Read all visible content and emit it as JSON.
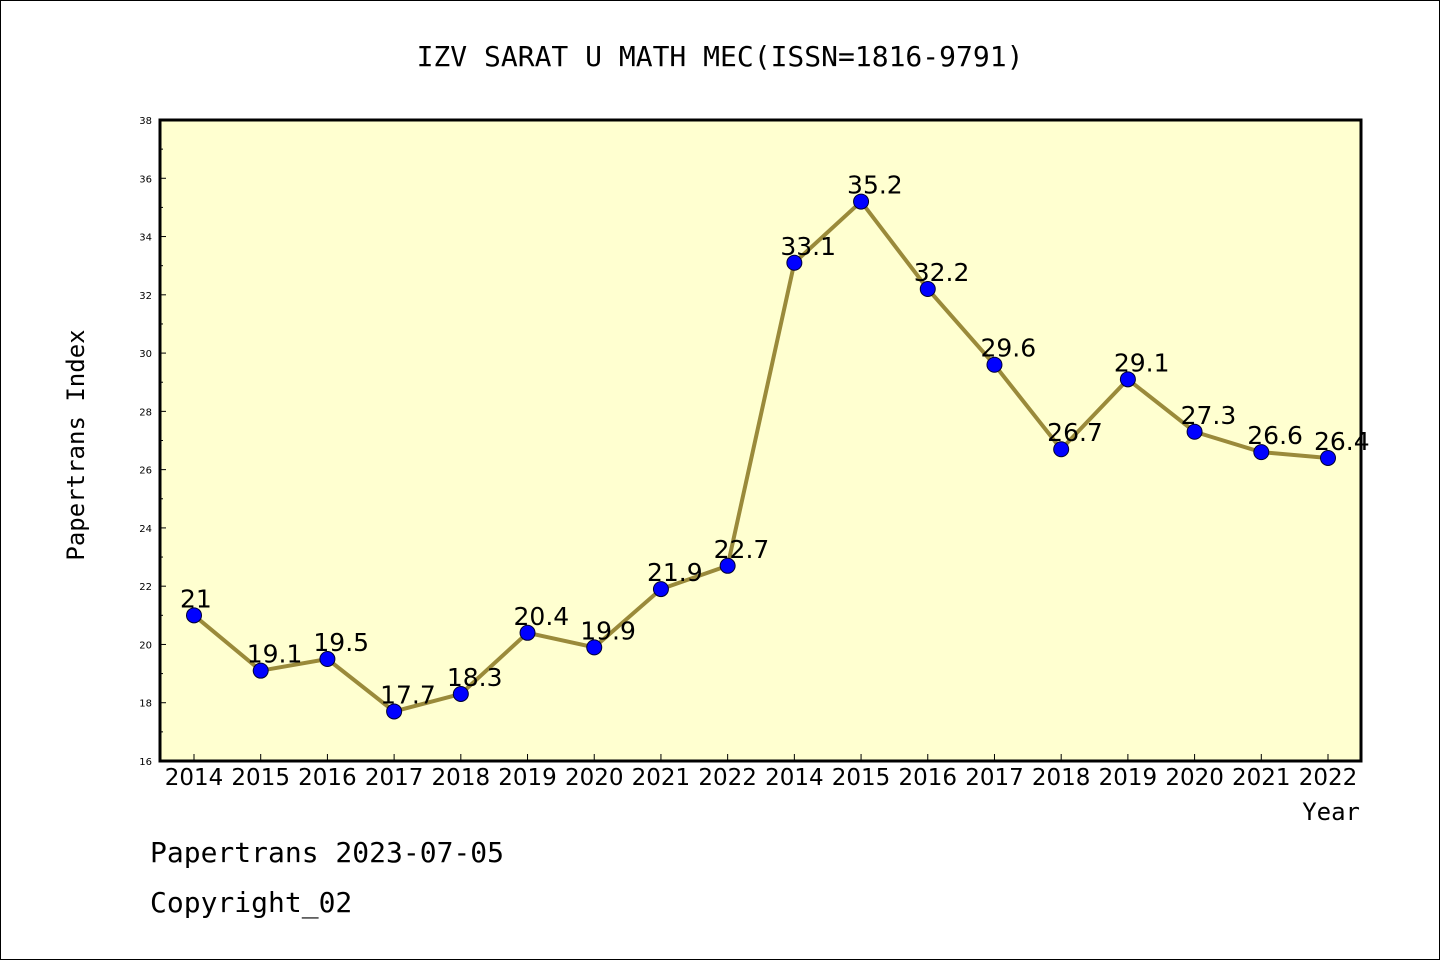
{
  "chart_data": {
    "type": "line",
    "title": "IZV SARAT U MATH MEC(ISSN=1816-9791)",
    "xlabel": "Year",
    "ylabel": "Papertrans Index",
    "categories": [
      "2014",
      "2015",
      "2016",
      "2017",
      "2018",
      "2019",
      "2020",
      "2021",
      "2022",
      "2014",
      "2015",
      "2016",
      "2017",
      "2018",
      "2019",
      "2020",
      "2021",
      "2022"
    ],
    "values": [
      21,
      19.1,
      19.5,
      17.7,
      18.3,
      20.4,
      19.9,
      21.9,
      22.7,
      33.1,
      35.2,
      32.2,
      29.6,
      26.7,
      29.1,
      27.3,
      26.6,
      26.4
    ],
    "data_labels": [
      "21",
      "19.1",
      "19.5",
      "17.7",
      "18.3",
      "20.4",
      "19.9",
      "21.9",
      "22.7",
      "33.1",
      "35.2",
      "32.2",
      "29.6",
      "26.7",
      "29.1",
      "27.3",
      "26.6",
      "26.4"
    ],
    "ylim": [
      16,
      38
    ],
    "yticks": [
      "16",
      "18",
      "20",
      "22",
      "24",
      "26",
      "28",
      "30",
      "32",
      "34",
      "36",
      "38"
    ],
    "grid": false,
    "colors": {
      "line": "#9a8a3a",
      "marker": "#0000ff",
      "plot_bg": "#ffffd0"
    }
  },
  "footer": {
    "date_line": "Papertrans 2023-07-05",
    "copyright": "Copyright_02"
  }
}
